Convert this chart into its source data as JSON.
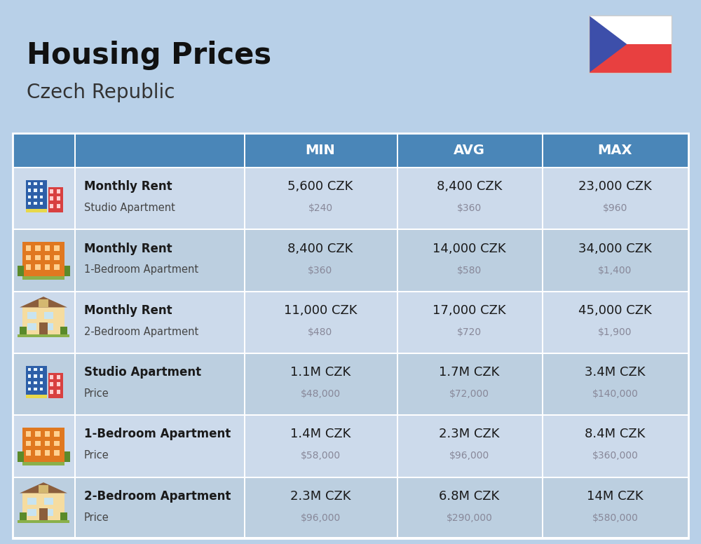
{
  "title": "Housing Prices",
  "subtitle": "Czech Republic",
  "bg_color": "#b8d0e8",
  "header_bg": "#4a86b8",
  "header_text": "#ffffff",
  "row_colors": [
    "#ccdaeb",
    "#bccfe0"
  ],
  "divider_color": "#ffffff",
  "main_text": "#1a1a1a",
  "sub_text": "#888899",
  "header_labels": [
    "MIN",
    "AVG",
    "MAX"
  ],
  "rows": [
    {
      "bold": "Monthly Rent",
      "sub": "Studio Apartment",
      "min_czk": "5,600 CZK",
      "min_usd": "$240",
      "avg_czk": "8,400 CZK",
      "avg_usd": "$360",
      "max_czk": "23,000 CZK",
      "max_usd": "$960",
      "icon_type": "city_blue"
    },
    {
      "bold": "Monthly Rent",
      "sub": "1-Bedroom Apartment",
      "min_czk": "8,400 CZK",
      "min_usd": "$360",
      "avg_czk": "14,000 CZK",
      "avg_usd": "$580",
      "max_czk": "34,000 CZK",
      "max_usd": "$1,400",
      "icon_type": "city_orange"
    },
    {
      "bold": "Monthly Rent",
      "sub": "2-Bedroom Apartment",
      "min_czk": "11,000 CZK",
      "min_usd": "$480",
      "avg_czk": "17,000 CZK",
      "avg_usd": "$720",
      "max_czk": "45,000 CZK",
      "max_usd": "$1,900",
      "icon_type": "house_beige"
    },
    {
      "bold": "Studio Apartment",
      "sub": "Price",
      "min_czk": "1.1M CZK",
      "min_usd": "$48,000",
      "avg_czk": "1.7M CZK",
      "avg_usd": "$72,000",
      "max_czk": "3.4M CZK",
      "max_usd": "$140,000",
      "icon_type": "city_blue"
    },
    {
      "bold": "1-Bedroom Apartment",
      "sub": "Price",
      "min_czk": "1.4M CZK",
      "min_usd": "$58,000",
      "avg_czk": "2.3M CZK",
      "avg_usd": "$96,000",
      "max_czk": "8.4M CZK",
      "max_usd": "$360,000",
      "icon_type": "city_orange"
    },
    {
      "bold": "2-Bedroom Apartment",
      "sub": "Price",
      "min_czk": "2.3M CZK",
      "min_usd": "$96,000",
      "avg_czk": "6.8M CZK",
      "avg_usd": "$290,000",
      "max_czk": "14M CZK",
      "max_usd": "$580,000",
      "icon_type": "house_beige"
    }
  ],
  "flag_blue": "#3d4faa",
  "flag_red": "#e84040",
  "fig_w": 10.0,
  "fig_h": 7.76
}
